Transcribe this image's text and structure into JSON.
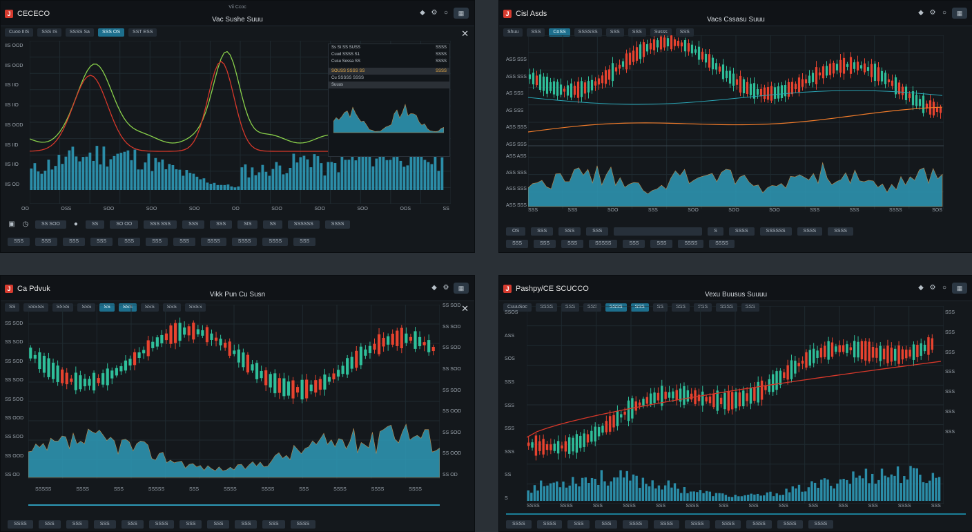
{
  "colors": {
    "up": "#2fbf9a",
    "down": "#e8432f",
    "volume": "#2e9ab8",
    "ma_green": "#8ad24b",
    "ma_red": "#d8382a",
    "ma_teal": "#2aa5b5",
    "ma_orange": "#f07b2a",
    "accent": "#1d6f8d"
  },
  "panels": {
    "tl": {
      "app_name": "CECECO",
      "sub_title": "Vii Ccoc",
      "window_title": "Vac Sushe Suuu",
      "toolbar": [
        "Cuoo IIIS",
        "SSS IS",
        "SSSS Sa",
        "SSS OS",
        "SST ESS"
      ],
      "yaxis": [
        "IIS OOD",
        "IIS OOD",
        "IIS IIO",
        "IIS IIO",
        "IIS OOD",
        "IIS IID",
        "IIS IIO",
        "IIS OD"
      ],
      "xaxis": [
        "OO",
        "OSS",
        "SOO",
        "SOO",
        "SOO",
        "OO",
        "SOO",
        "SOO",
        "SOO",
        "OOS",
        "SS"
      ],
      "legend_rows": [
        {
          "label": "Ss St SS SUSS",
          "value": "SSSS"
        },
        {
          "label": "Cuud SSSS S1",
          "value": "SSSS"
        },
        {
          "label": "Cusu Sossa SS",
          "value": "SSSS"
        },
        {
          "label": "",
          "value": ""
        },
        {
          "label": "SOUSS SSSS SS",
          "value": "SSSS"
        },
        {
          "label": "Cu SSSSS SSSS",
          "value": ""
        },
        {
          "label": "Suuus",
          "value": ""
        }
      ],
      "footer_top": [
        "SS SOO",
        "SS",
        "SO OO",
        "SSS SSS",
        "SSS",
        "SSS",
        "SIS",
        "SS",
        "SSSSSS",
        "SSSS"
      ],
      "footer_bottom": [
        "SSS",
        "SSS",
        "SSS",
        "SSS",
        "SSS",
        "SSS",
        "SSS",
        "SSSS",
        "SSSS",
        "SSSS",
        "SSS"
      ]
    },
    "tr": {
      "app_name": "Cisl Asds",
      "window_title": "Vacs Cssasu Suuu",
      "toolbar": [
        "Shuu",
        "SSS",
        "CoSS",
        "SSSSSS",
        "SSS",
        "SSS",
        "Susss",
        "SSS"
      ],
      "yaxis": [
        "ASS SSS",
        "ASS SSS",
        "AS SSS",
        "AS SSS",
        "ASS SSS",
        "ASS SSS"
      ],
      "yaxis_lower": [
        "ASS ASS",
        "ASS SSS",
        "ASS SSS",
        "ASS SSS"
      ],
      "xaxis": [
        "SSS",
        "SSS",
        "SOO",
        "SSS",
        "SOO",
        "SOO",
        "SOO",
        "SSS",
        "SSS",
        "SSSS",
        "SOS"
      ],
      "footer_top": [
        "OS",
        "SSS",
        "SSS",
        "SSS",
        "S",
        "SSSS",
        "SSSSSS",
        "SSSS",
        "SSSS"
      ],
      "footer_bottom": [
        "SSS",
        "SSS",
        "SSS",
        "SSSSS",
        "SSS",
        "SSS",
        "SSSS",
        "SSSS"
      ]
    },
    "bl": {
      "app_name": "Ca Pdvuk",
      "window_title": "Vikk Pun Cu Susn",
      "toolbar": [
        "SS",
        "SSSSS",
        "SSSS",
        "SSS",
        "SS",
        "SSS",
        "SSS",
        "SSS",
        "SSSS"
      ],
      "yaxis": [
        "SS SOD",
        "SS SOD",
        "SS SOD",
        "SS SOO",
        "SS SOO",
        "SS OOD",
        "SS SOO",
        "SS OOD",
        "SS OD"
      ],
      "xaxis": [
        "SSSSS",
        "SSSS",
        "SSS",
        "SSSSS",
        "SSS",
        "SSSS",
        "SSSS",
        "SSS",
        "SSSS",
        "SSSS",
        "SSSS"
      ],
      "footer_bottom": [
        "SSSS",
        "SSS",
        "SSS",
        "SSS",
        "SSS",
        "SSSS",
        "SSS",
        "SSS",
        "SSS",
        "SSS",
        "SSSS"
      ]
    },
    "br": {
      "app_name": "Pashpy/CE SCUCCO",
      "window_title": "Vexu Buusus Suuuu",
      "toolbar": [
        "CuuuSoo",
        "SSSS",
        "SSS",
        "SSS",
        "SSSS",
        "SSS",
        "SS",
        "SSS",
        "SSS",
        "SSSS",
        "SSS"
      ],
      "yaxis": [
        "SSOS",
        "ASS",
        "SOS",
        "SSS",
        "SSS",
        "SSS",
        "SSS",
        "SS",
        "S"
      ],
      "yaxis_right": [
        "SSS",
        "SSS",
        "SSS",
        "SSS",
        "SSS",
        "SSS",
        "SSS"
      ],
      "xaxis": [
        "SSSS",
        "SSSS",
        "SSS",
        "SSSS",
        "SSS",
        "SSSS",
        "SSS",
        "SSS",
        "SSS",
        "SSS",
        "SSS",
        "SSS",
        "SSSS",
        "SSS"
      ],
      "footer_bottom": [
        "SSSS",
        "SSSS",
        "SSS",
        "SSS",
        "SSSS",
        "SSSS",
        "SSSS",
        "SSSS",
        "SSSS",
        "SSSS",
        "SSSS"
      ]
    }
  }
}
